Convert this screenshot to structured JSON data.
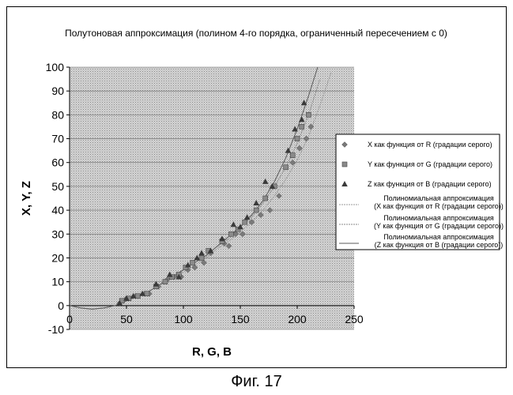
{
  "figure_caption": "Фиг. 17",
  "chart_data": {
    "type": "scatter",
    "title": "Полутоновая аппроксимация (полином 4-го порядка, ограниченный пересечением с 0)",
    "xlabel": "R, G, B",
    "ylabel": "X, Y, Z",
    "xlim": [
      0,
      250
    ],
    "ylim": [
      -10,
      100
    ],
    "xticks": [
      0,
      50,
      100,
      150,
      200,
      250
    ],
    "yticks": [
      -10,
      0,
      10,
      20,
      30,
      40,
      50,
      60,
      70,
      80,
      90,
      100
    ],
    "grid": true,
    "legend_position": "right",
    "series": [
      {
        "name": "X как функция от R (градации серого)",
        "marker": "diamond",
        "color": "#7a7a7a",
        "points": [
          [
            44,
            1
          ],
          [
            50,
            3
          ],
          [
            58,
            4
          ],
          [
            66,
            5
          ],
          [
            70,
            5
          ],
          [
            78,
            8
          ],
          [
            86,
            11
          ],
          [
            92,
            12
          ],
          [
            98,
            12
          ],
          [
            104,
            15
          ],
          [
            110,
            16
          ],
          [
            118,
            18
          ],
          [
            124,
            22
          ],
          [
            136,
            26
          ],
          [
            140,
            25
          ],
          [
            146,
            30
          ],
          [
            152,
            30
          ],
          [
            160,
            35
          ],
          [
            168,
            38
          ],
          [
            176,
            40
          ],
          [
            184,
            46
          ],
          [
            196,
            60
          ],
          [
            202,
            66
          ],
          [
            208,
            70
          ],
          [
            212,
            75
          ]
        ]
      },
      {
        "name": "Y как функция от G (градации серого)",
        "marker": "square",
        "color": "#8a8a8a",
        "points": [
          [
            46,
            2
          ],
          [
            52,
            3
          ],
          [
            60,
            4
          ],
          [
            68,
            5
          ],
          [
            76,
            8
          ],
          [
            84,
            10
          ],
          [
            90,
            12
          ],
          [
            96,
            13
          ],
          [
            102,
            16
          ],
          [
            108,
            18
          ],
          [
            116,
            20
          ],
          [
            122,
            23
          ],
          [
            134,
            27
          ],
          [
            142,
            30
          ],
          [
            148,
            32
          ],
          [
            154,
            35
          ],
          [
            164,
            40
          ],
          [
            172,
            45
          ],
          [
            180,
            50
          ],
          [
            190,
            58
          ],
          [
            196,
            63
          ],
          [
            200,
            70
          ],
          [
            204,
            75
          ],
          [
            210,
            80
          ]
        ]
      },
      {
        "name": "Z как функция от B (градации серого)",
        "marker": "triangle",
        "color": "#3a3a3a",
        "points": [
          [
            44,
            1
          ],
          [
            50,
            3
          ],
          [
            56,
            4
          ],
          [
            64,
            5
          ],
          [
            76,
            9
          ],
          [
            88,
            13
          ],
          [
            96,
            12
          ],
          [
            104,
            17
          ],
          [
            112,
            20
          ],
          [
            116,
            22
          ],
          [
            124,
            23
          ],
          [
            134,
            28
          ],
          [
            144,
            34
          ],
          [
            150,
            33
          ],
          [
            156,
            37
          ],
          [
            164,
            43
          ],
          [
            172,
            52
          ],
          [
            178,
            50
          ],
          [
            192,
            65
          ],
          [
            198,
            74
          ],
          [
            204,
            78
          ],
          [
            206,
            85
          ]
        ]
      }
    ],
    "trendlines": [
      {
        "name": "Полиномиальная аппроксимация\n(X как функция от R (градации серого))",
        "color": "#9a9a9a",
        "points": [
          [
            0,
            0
          ],
          [
            10,
            -1
          ],
          [
            20,
            -1.5
          ],
          [
            30,
            -1
          ],
          [
            40,
            0
          ],
          [
            50,
            2
          ],
          [
            60,
            4
          ],
          [
            70,
            6
          ],
          [
            80,
            9
          ],
          [
            90,
            12
          ],
          [
            100,
            14
          ],
          [
            110,
            17
          ],
          [
            120,
            20
          ],
          [
            130,
            24
          ],
          [
            140,
            27
          ],
          [
            150,
            31
          ],
          [
            160,
            35
          ],
          [
            170,
            40
          ],
          [
            180,
            46
          ],
          [
            190,
            53
          ],
          [
            200,
            61
          ],
          [
            210,
            71
          ],
          [
            220,
            84
          ],
          [
            230,
            98
          ]
        ]
      },
      {
        "name": "Полиномиальная аппроксимация\n(Y как функция от G (градации серого))",
        "color": "#8a8a8a",
        "points": [
          [
            0,
            0
          ],
          [
            10,
            -1
          ],
          [
            20,
            -1.5
          ],
          [
            30,
            -1
          ],
          [
            40,
            0
          ],
          [
            50,
            2
          ],
          [
            60,
            4
          ],
          [
            70,
            6
          ],
          [
            80,
            9
          ],
          [
            90,
            12
          ],
          [
            100,
            15
          ],
          [
            110,
            18
          ],
          [
            120,
            21
          ],
          [
            130,
            25
          ],
          [
            140,
            28
          ],
          [
            150,
            33
          ],
          [
            160,
            37
          ],
          [
            170,
            43
          ],
          [
            180,
            50
          ],
          [
            190,
            58
          ],
          [
            200,
            68
          ],
          [
            210,
            80
          ],
          [
            220,
            95
          ]
        ]
      },
      {
        "name": "Полиномиальная аппроксимация\n(Z как функция от B (градации серого))",
        "color": "#5a5a5a",
        "points": [
          [
            0,
            0
          ],
          [
            10,
            -1
          ],
          [
            20,
            -1.5
          ],
          [
            30,
            -1
          ],
          [
            40,
            0
          ],
          [
            50,
            2
          ],
          [
            60,
            4
          ],
          [
            70,
            6
          ],
          [
            80,
            9
          ],
          [
            90,
            12
          ],
          [
            100,
            15
          ],
          [
            110,
            18
          ],
          [
            120,
            21
          ],
          [
            130,
            25
          ],
          [
            140,
            29
          ],
          [
            150,
            33
          ],
          [
            160,
            38
          ],
          [
            170,
            44
          ],
          [
            180,
            52
          ],
          [
            190,
            62
          ],
          [
            200,
            74
          ],
          [
            210,
            88
          ],
          [
            218,
            100
          ]
        ]
      }
    ]
  }
}
